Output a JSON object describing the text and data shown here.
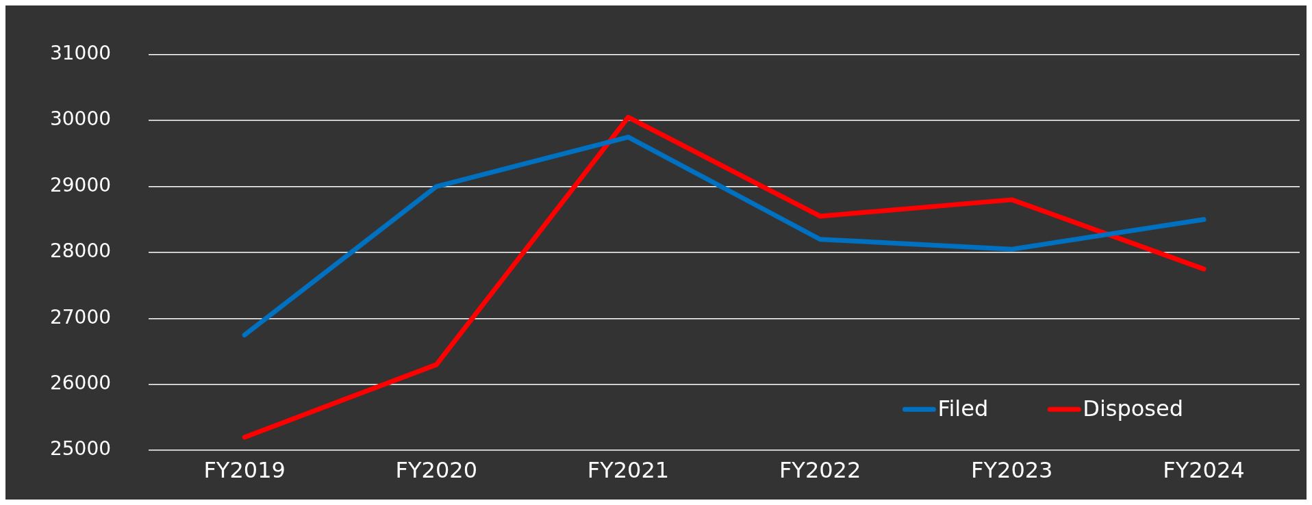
{
  "chart_data": {
    "type": "line",
    "categories": [
      "FY2019",
      "FY2020",
      "FY2021",
      "FY2022",
      "FY2023",
      "FY2024"
    ],
    "series": [
      {
        "name": "Filed",
        "color": "#0070c0",
        "values": [
          26750,
          29000,
          29750,
          28200,
          28050,
          28500
        ]
      },
      {
        "name": "Disposed",
        "color": "#ff0000",
        "values": [
          25200,
          26300,
          30050,
          28550,
          28800,
          27750
        ]
      }
    ],
    "ylim": [
      25000,
      31000
    ],
    "yticks": [
      25000,
      26000,
      27000,
      28000,
      29000,
      30000,
      31000
    ],
    "grid": "y",
    "legend": "bottom right",
    "marker": "none",
    "line_style": "solid"
  }
}
